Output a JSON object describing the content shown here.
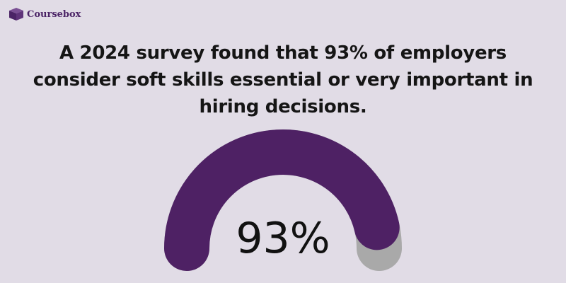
{
  "brand": {
    "name": "Coursebox",
    "icon": "box-icon",
    "color": "#4b2466"
  },
  "headline": "A 2024 survey found that 93% of employers consider soft skills essential or very important in hiring decisions.",
  "chart_data": {
    "type": "gauge",
    "value": 93,
    "max": 100,
    "label": "93%",
    "fill_color": "#4e2164",
    "track_color": "#a9a9a9"
  }
}
